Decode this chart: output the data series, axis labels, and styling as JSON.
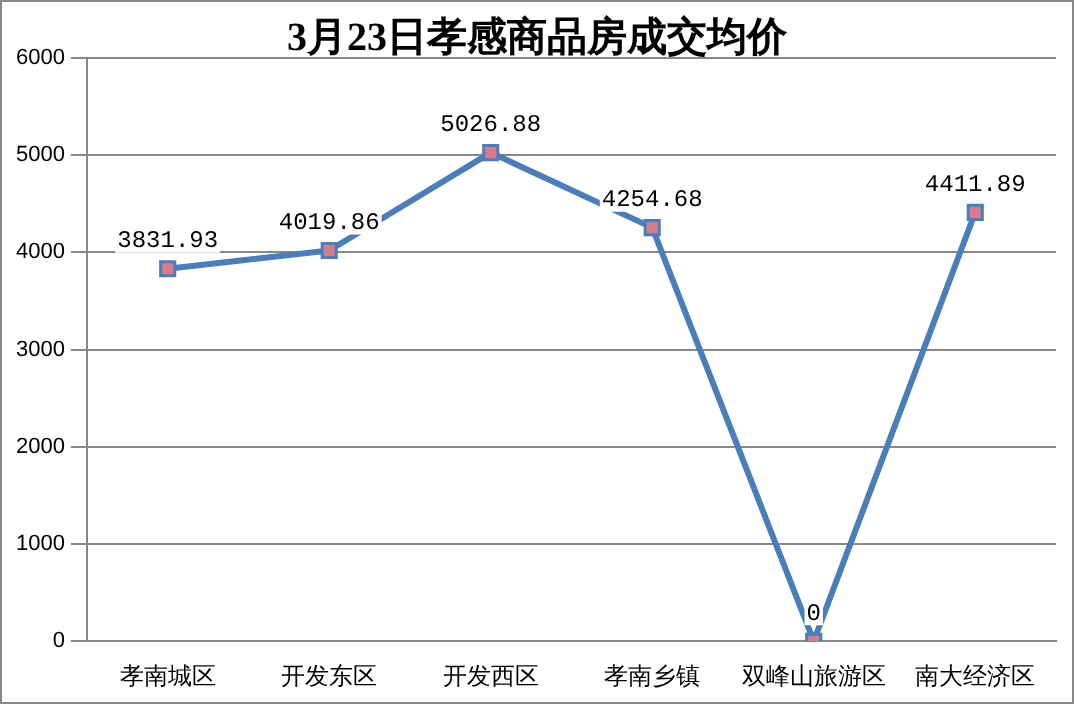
{
  "chart_data": {
    "type": "line",
    "title": "3月23日孝感商品房成交均价",
    "categories": [
      "孝南城区",
      "开发东区",
      "开发西区",
      "孝南乡镇",
      "双峰山旅游区",
      "南大经济区"
    ],
    "series": [
      {
        "color": "#4a7ebb",
        "values": [
          3831.93,
          4019.86,
          5026.88,
          4254.68,
          0,
          4411.89
        ]
      }
    ],
    "ylim": [
      0,
      6000
    ],
    "yticks": [
      0,
      1000,
      2000,
      3000,
      4000,
      5000,
      6000
    ],
    "grid": "y",
    "legend": false,
    "marker": "square",
    "line_style": "solid",
    "data_labels": true
  }
}
